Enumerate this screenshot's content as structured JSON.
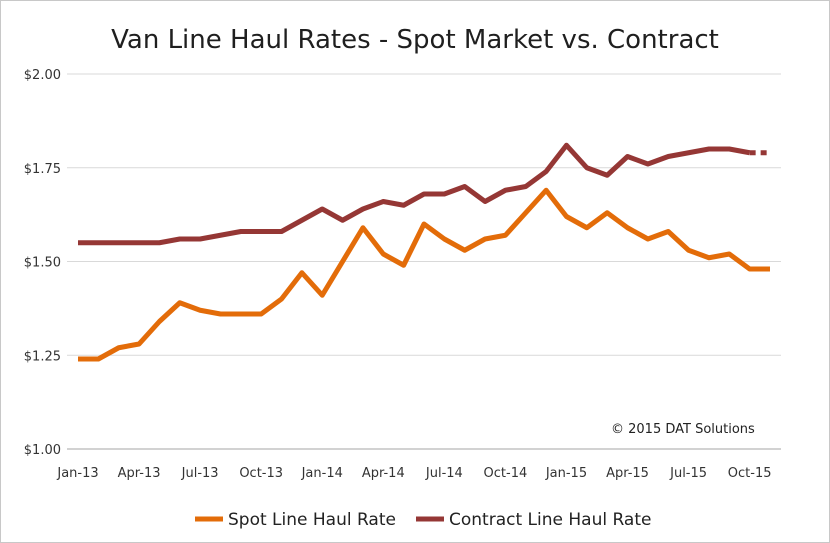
{
  "chart_data": {
    "type": "line",
    "title": "Van Line Haul Rates  - Spot Market vs. Contract",
    "annotation": "© 2015 DAT Solutions",
    "ylim": [
      1.0,
      2.0
    ],
    "y_ticks": [
      "$1.00",
      "$1.25",
      "$1.50",
      "$1.75",
      "$2.00"
    ],
    "y_tick_values": [
      1.0,
      1.25,
      1.5,
      1.75,
      2.0
    ],
    "x_ticks": [
      "Jan-13",
      "Apr-13",
      "Jul-13",
      "Oct-13",
      "Jan-14",
      "Apr-14",
      "Jul-14",
      "Oct-14",
      "Jan-15",
      "Apr-15",
      "Jul-15",
      "Oct-15"
    ],
    "x_tick_index": [
      0,
      3,
      6,
      9,
      12,
      15,
      18,
      21,
      24,
      27,
      30,
      33
    ],
    "grid": true,
    "legend_position": "bottom",
    "x": [
      "Jan-13",
      "Feb-13",
      "Mar-13",
      "Apr-13",
      "May-13",
      "Jun-13",
      "Jul-13",
      "Aug-13",
      "Sep-13",
      "Oct-13",
      "Nov-13",
      "Dec-13",
      "Jan-14",
      "Feb-14",
      "Mar-14",
      "Apr-14",
      "May-14",
      "Jun-14",
      "Jul-14",
      "Aug-14",
      "Sep-14",
      "Oct-14",
      "Nov-14",
      "Dec-14",
      "Jan-15",
      "Feb-15",
      "Mar-15",
      "Apr-15",
      "May-15",
      "Jun-15",
      "Jul-15",
      "Aug-15",
      "Sep-15",
      "Oct-15",
      "Nov-15"
    ],
    "series": [
      {
        "name": "Spot Line Haul Rate",
        "color": "#e36c09",
        "values": [
          1.24,
          1.24,
          1.27,
          1.28,
          1.34,
          1.39,
          1.37,
          1.36,
          1.36,
          1.36,
          1.4,
          1.47,
          1.41,
          1.5,
          1.59,
          1.52,
          1.49,
          1.6,
          1.56,
          1.53,
          1.56,
          1.57,
          1.63,
          1.69,
          1.62,
          1.59,
          1.63,
          1.59,
          1.56,
          1.58,
          1.53,
          1.51,
          1.52,
          1.48,
          1.48
        ]
      },
      {
        "name": "Contract Line Haul Rate",
        "color": "#953735",
        "values": [
          1.55,
          1.55,
          1.55,
          1.55,
          1.55,
          1.56,
          1.56,
          1.57,
          1.58,
          1.58,
          1.58,
          1.61,
          1.64,
          1.61,
          1.64,
          1.66,
          1.65,
          1.68,
          1.68,
          1.7,
          1.66,
          1.69,
          1.7,
          1.74,
          1.81,
          1.75,
          1.73,
          1.78,
          1.76,
          1.78,
          1.79,
          1.8,
          1.8,
          1.79,
          1.79
        ],
        "dashed_from_index": 33
      }
    ]
  }
}
